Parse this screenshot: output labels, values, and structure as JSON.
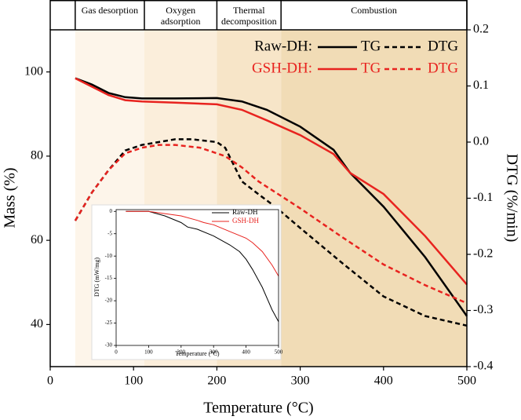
{
  "chart_data": [
    {
      "type": "line",
      "xlabel": "Temperature (°C)",
      "ylabel": "Mass (%)",
      "y2label": "DTG (%/min)",
      "xlim": [
        0,
        500
      ],
      "xticks": [
        0,
        100,
        200,
        300,
        400,
        500
      ],
      "ylim": [
        30,
        110
      ],
      "yticks": [
        40,
        60,
        80,
        100
      ],
      "y2lim": [
        -0.4,
        0.2
      ],
      "y2ticks": [
        0.2,
        0.1,
        {
          "value": 0,
          "label": "0.0"
        },
        -0.1,
        -0.2,
        -0.3,
        -0.4
      ],
      "grid": false,
      "stages": [
        {
          "label": "Gas desorption",
          "range": [
            30,
            113
          ],
          "color": "#fdf5ea"
        },
        {
          "label": "Oxygen adsorption",
          "range": [
            113,
            200
          ],
          "color": "#fbeedb"
        },
        {
          "label": "Thermal decomposition",
          "range": [
            200,
            277
          ],
          "color": "#f7e5c8"
        },
        {
          "label": "Combustion",
          "range": [
            277,
            500
          ],
          "color": "#f1dcb6"
        }
      ],
      "groups": [
        {
          "label": "Raw-DH:",
          "color": "#000000",
          "series": [
            {
              "name": "TG",
              "style": "solid",
              "x": [
                30,
                50,
                70,
                90,
                110,
                150,
                200,
                230,
                260,
                300,
                340,
                360,
                400,
                450,
                500
              ],
              "values": [
                98.5,
                97,
                95,
                94,
                93.7,
                93.7,
                93.8,
                93,
                91,
                87,
                81.5,
                76,
                68,
                56,
                42
              ]
            },
            {
              "name": "DTG",
              "style": "dashed",
              "axis": "y2",
              "x": [
                30,
                50,
                70,
                90,
                110,
                130,
                150,
                170,
                200,
                210,
                230,
                250,
                270,
                300,
                350,
                400,
                450,
                500
              ],
              "values": [
                -0.14,
                -0.09,
                -0.05,
                -0.015,
                -0.005,
                0.0,
                0.005,
                0.005,
                0.0,
                -0.01,
                -0.07,
                -0.093,
                -0.115,
                -0.153,
                -0.215,
                -0.275,
                -0.31,
                -0.327
              ]
            }
          ]
        },
        {
          "label": "GSH-DH:",
          "color": "#e8231f",
          "series": [
            {
              "name": "TG",
              "style": "solid",
              "x": [
                30,
                50,
                70,
                90,
                110,
                150,
                200,
                230,
                260,
                300,
                340,
                360,
                400,
                450,
                500
              ],
              "values": [
                98.5,
                96.5,
                94.5,
                93.3,
                93,
                92.7,
                92.3,
                91,
                88.5,
                85,
                80.5,
                76,
                71,
                61,
                49.5
              ]
            },
            {
              "name": "DTG",
              "style": "dashed",
              "axis": "y2",
              "x": [
                30,
                50,
                70,
                90,
                110,
                130,
                150,
                180,
                210,
                230,
                250,
                300,
                350,
                400,
                450,
                500
              ],
              "values": [
                -0.14,
                -0.09,
                -0.05,
                -0.02,
                -0.01,
                -0.005,
                -0.005,
                -0.01,
                -0.025,
                -0.045,
                -0.07,
                -0.118,
                -0.169,
                -0.218,
                -0.255,
                -0.287
              ]
            }
          ]
        }
      ]
    },
    {
      "type": "line",
      "xlabel": "Temperature (°C)",
      "ylabel": "DTG (mW/mg)",
      "xlim": [
        0,
        500
      ],
      "xticks": [
        0,
        100,
        200,
        300,
        400,
        500
      ],
      "ylim": [
        -30,
        0.4
      ],
      "yticks": [
        0,
        -5,
        -10,
        -15,
        -20,
        -25,
        -30
      ],
      "series": [
        {
          "name": "Raw-DH",
          "color": "#000000",
          "x": [
            30,
            100,
            150,
            200,
            220,
            250,
            300,
            350,
            380,
            400,
            420,
            450,
            480,
            500
          ],
          "values": [
            0,
            0,
            -1,
            -2.5,
            -3.5,
            -4,
            -5.5,
            -7.5,
            -9,
            -10.7,
            -13,
            -17,
            -22,
            -24.7
          ]
        },
        {
          "name": "GSH-DH",
          "color": "#e8231f",
          "x": [
            30,
            100,
            150,
            200,
            250,
            270,
            300,
            350,
            400,
            420,
            450,
            480,
            500
          ],
          "values": [
            0,
            0,
            -0.5,
            -1,
            -2,
            -2.5,
            -3,
            -4.5,
            -6,
            -7,
            -9,
            -12,
            -14.5
          ]
        }
      ]
    }
  ]
}
